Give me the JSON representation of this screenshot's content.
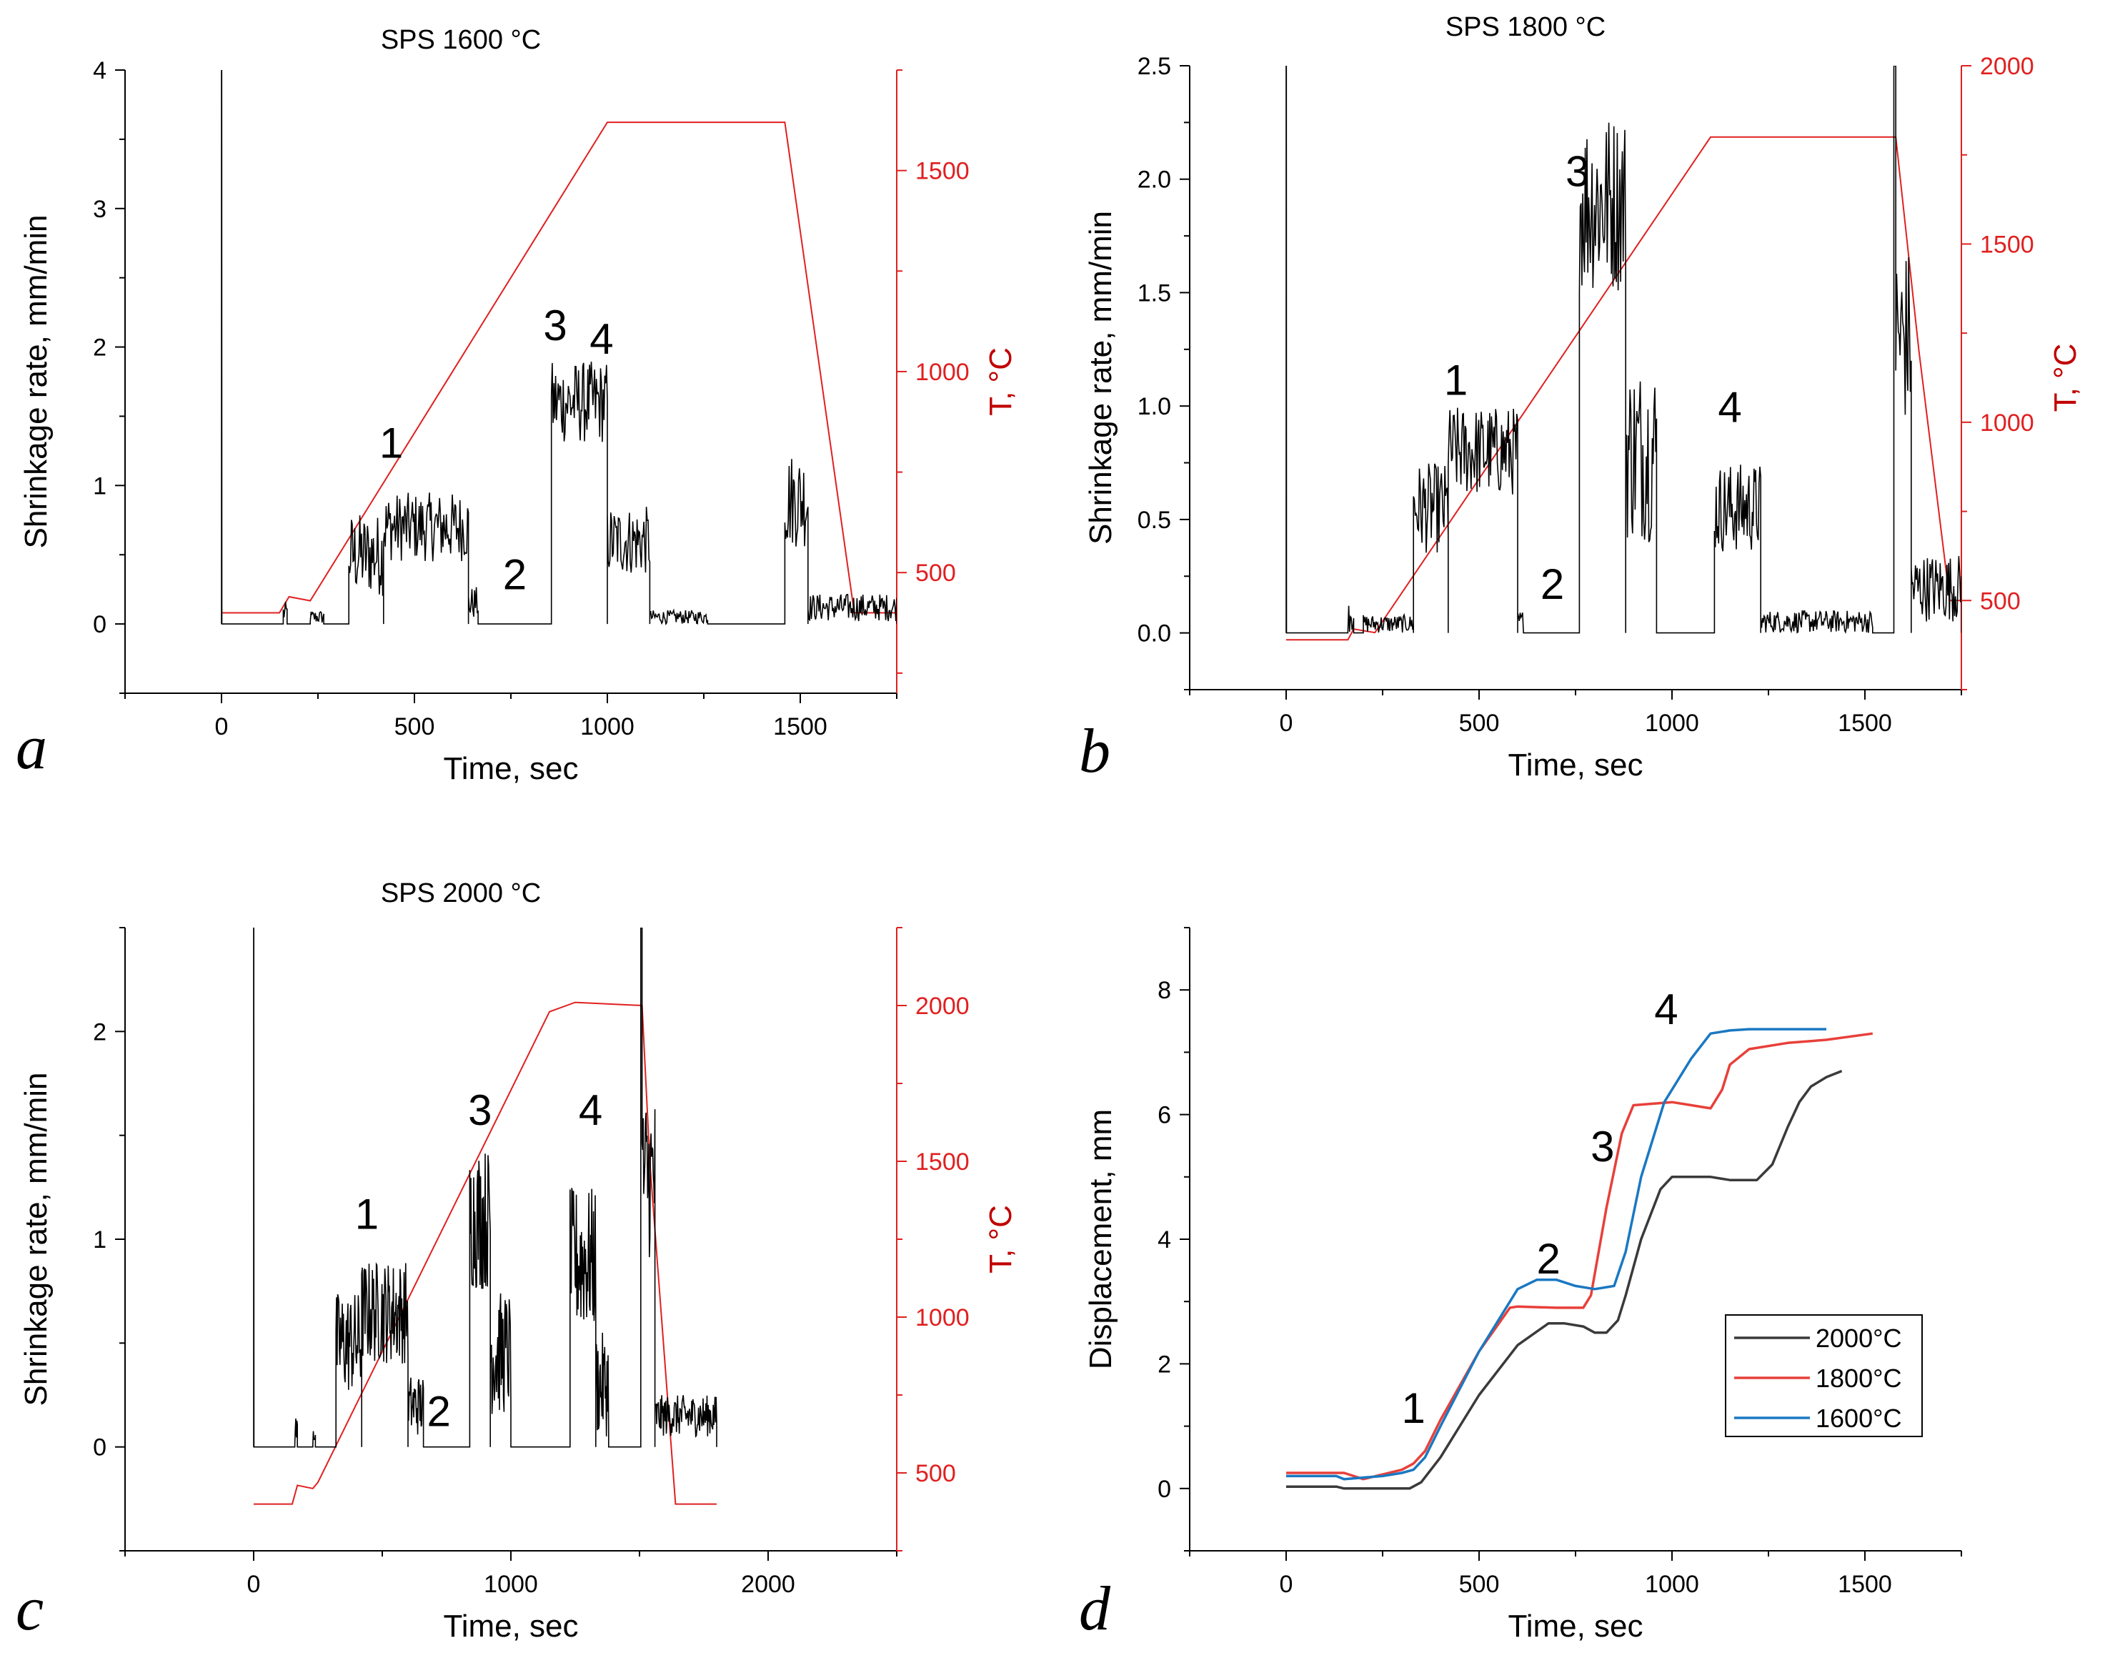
{
  "colors": {
    "rate": "#000000",
    "temp": "#e02020",
    "temp_axis_label": "#c00000",
    "line_2000": "#3a3a3a",
    "line_1800": "#e8403a",
    "line_1600": "#1a78c2"
  },
  "chart_data": [
    {
      "panel": "a",
      "type": "line",
      "title": "SPS 1600 °C",
      "xlabel": "Time, sec",
      "ylabel": "Shrinkage rate, mm/min",
      "y2label": "T, °C",
      "xlim": [
        -250,
        1750
      ],
      "ylim": [
        -0.5,
        4
      ],
      "y2lim": [
        200,
        1750
      ],
      "xticks": [
        0,
        500,
        1000,
        1500
      ],
      "xtick_labels": [
        "0",
        "500",
        "1000",
        "1500"
      ],
      "yticks": [
        0,
        1,
        2,
        3,
        4
      ],
      "ytick_labels": [
        "0",
        "1",
        "2",
        "3",
        "4"
      ],
      "y2ticks": [
        500,
        1000,
        1500
      ],
      "y2tick_labels": [
        "500",
        "1000",
        "1500"
      ],
      "rate_segments": [
        {
          "start": 0,
          "end": 1,
          "base": 0,
          "amp": 4.0,
          "noise": 0
        },
        {
          "start": 1,
          "end": 160,
          "base": 0,
          "amp": 0,
          "noise": 0
        },
        {
          "start": 160,
          "end": 170,
          "base": 0.08,
          "amp": 0,
          "noise": 0.08
        },
        {
          "start": 230,
          "end": 265,
          "base": 0.05,
          "amp": 0,
          "noise": 0.05
        },
        {
          "start": 330,
          "end": 420,
          "base": 0.5,
          "amp": 0,
          "noise": 0.3
        },
        {
          "start": 420,
          "end": 640,
          "base": 0.7,
          "amp": 0,
          "noise": 0.25
        },
        {
          "start": 640,
          "end": 665,
          "base": 0.15,
          "amp": 0,
          "noise": 0.12
        },
        {
          "start": 665,
          "end": 855,
          "base": 0,
          "amp": 0,
          "noise": 0
        },
        {
          "start": 855,
          "end": 1000,
          "base": 1.6,
          "amp": 0,
          "noise": 0.3
        },
        {
          "start": 1000,
          "end": 1110,
          "base": 0.6,
          "amp": 0,
          "noise": 0.25
        },
        {
          "start": 1110,
          "end": 1260,
          "base": 0.05,
          "amp": 0,
          "noise": 0.05
        },
        {
          "start": 1260,
          "end": 1460,
          "base": 0,
          "amp": 0,
          "noise": 0
        },
        {
          "start": 1460,
          "end": 1520,
          "base": 0.9,
          "amp": 0,
          "noise": 0.35
        },
        {
          "start": 1520,
          "end": 1750,
          "base": 0.12,
          "amp": 0,
          "noise": 0.1
        }
      ],
      "temp_x": [
        0,
        150,
        175,
        230,
        1000,
        1460,
        1640,
        1750
      ],
      "temp_y": [
        400,
        400,
        440,
        430,
        1620,
        1620,
        400,
        400
      ],
      "annotations": [
        {
          "text": "1",
          "x": 440,
          "y": 1.2
        },
        {
          "text": "2",
          "x": 760,
          "y": 0.25
        },
        {
          "text": "3",
          "x": 865,
          "y": 2.05
        },
        {
          "text": "4",
          "x": 985,
          "y": 1.95
        }
      ]
    },
    {
      "panel": "b",
      "type": "line",
      "title": "SPS 1800 °C",
      "xlabel": "Time, sec",
      "ylabel": "Shrinkage rate, mm/min",
      "y2label": "T, °C",
      "xlim": [
        -250,
        1750
      ],
      "ylim": [
        -0.25,
        2.5
      ],
      "y2lim": [
        250,
        2000
      ],
      "xticks": [
        0,
        500,
        1000,
        1500
      ],
      "xtick_labels": [
        "0",
        "500",
        "1000",
        "1500"
      ],
      "yticks": [
        0,
        0.5,
        1,
        1.5,
        2,
        2.5
      ],
      "ytick_labels": [
        "0.0",
        "0.5",
        "1.0",
        "1.5",
        "2.0",
        "2.5"
      ],
      "y2ticks": [
        500,
        1000,
        1500,
        2000
      ],
      "y2tick_labels": [
        "500",
        "1000",
        "1500",
        "2000"
      ],
      "rate_segments": [
        {
          "start": 0,
          "end": 1,
          "base": 0,
          "amp": 2.5,
          "noise": 0
        },
        {
          "start": 1,
          "end": 160,
          "base": 0,
          "amp": 0,
          "noise": 0
        },
        {
          "start": 160,
          "end": 175,
          "base": 0.1,
          "amp": 0,
          "noise": 0.1
        },
        {
          "start": 200,
          "end": 330,
          "base": 0.04,
          "amp": 0,
          "noise": 0.04
        },
        {
          "start": 330,
          "end": 420,
          "base": 0.55,
          "amp": 0,
          "noise": 0.2
        },
        {
          "start": 420,
          "end": 600,
          "base": 0.8,
          "amp": 0,
          "noise": 0.2
        },
        {
          "start": 600,
          "end": 615,
          "base": 0.05,
          "amp": 0,
          "noise": 0.05
        },
        {
          "start": 615,
          "end": 760,
          "base": 0,
          "amp": 0,
          "noise": 0
        },
        {
          "start": 760,
          "end": 880,
          "base": 1.9,
          "amp": 0,
          "noise": 0.4
        },
        {
          "start": 880,
          "end": 960,
          "base": 0.8,
          "amp": 0,
          "noise": 0.4
        },
        {
          "start": 960,
          "end": 1110,
          "base": 0,
          "amp": 0,
          "noise": 0
        },
        {
          "start": 1110,
          "end": 1230,
          "base": 0.55,
          "amp": 0,
          "noise": 0.2
        },
        {
          "start": 1230,
          "end": 1520,
          "base": 0.05,
          "amp": 0,
          "noise": 0.05
        },
        {
          "start": 1520,
          "end": 1575,
          "base": 0,
          "amp": 0,
          "noise": 0
        },
        {
          "start": 1575,
          "end": 1580,
          "base": 2.5,
          "amp": 0,
          "noise": 0
        },
        {
          "start": 1580,
          "end": 1620,
          "base": 1.3,
          "amp": 0,
          "noise": 0.4
        },
        {
          "start": 1620,
          "end": 1750,
          "base": 0.2,
          "amp": 0,
          "noise": 0.15
        }
      ],
      "temp_x": [
        0,
        160,
        175,
        230,
        1100,
        1580,
        1640,
        1720,
        1750
      ],
      "temp_y": [
        390,
        390,
        420,
        410,
        1800,
        1800,
        1200,
        500,
        500
      ],
      "annotations": [
        {
          "text": "1",
          "x": 440,
          "y": 1.05
        },
        {
          "text": "2",
          "x": 690,
          "y": 0.15
        },
        {
          "text": "3",
          "x": 755,
          "y": 1.97
        },
        {
          "text": "4",
          "x": 1150,
          "y": 0.93
        }
      ]
    },
    {
      "panel": "c",
      "type": "line",
      "title": "SPS 2000 °C",
      "xlabel": "Time, sec",
      "ylabel": "Shrinkage rate, mm/min",
      "y2label": "T, °C",
      "xlim": [
        -500,
        2500
      ],
      "ylim": [
        -0.5,
        2.5
      ],
      "y2lim": [
        250,
        2250
      ],
      "xticks": [
        0,
        1000,
        2000
      ],
      "xtick_labels": [
        "0",
        "1000",
        "2000"
      ],
      "yticks": [
        0,
        1,
        2
      ],
      "ytick_labels": [
        "0",
        "1",
        "2"
      ],
      "y2ticks": [
        500,
        1000,
        1500,
        2000
      ],
      "y2tick_labels": [
        "500",
        "1000",
        "1500",
        "2000"
      ],
      "rate_segments": [
        {
          "start": 0,
          "end": 1,
          "base": 0,
          "amp": 2.5,
          "noise": 0
        },
        {
          "start": 1,
          "end": 160,
          "base": 0,
          "amp": 0,
          "noise": 0
        },
        {
          "start": 160,
          "end": 170,
          "base": 0.08,
          "amp": 0,
          "noise": 0.08
        },
        {
          "start": 230,
          "end": 240,
          "base": 0.08,
          "amp": 0,
          "noise": 0.08
        },
        {
          "start": 320,
          "end": 420,
          "base": 0.5,
          "amp": 0,
          "noise": 0.25
        },
        {
          "start": 420,
          "end": 600,
          "base": 0.65,
          "amp": 0,
          "noise": 0.25
        },
        {
          "start": 600,
          "end": 660,
          "base": 0.2,
          "amp": 0,
          "noise": 0.15
        },
        {
          "start": 660,
          "end": 840,
          "base": 0,
          "amp": 0,
          "noise": 0
        },
        {
          "start": 840,
          "end": 920,
          "base": 1.1,
          "amp": 0,
          "noise": 0.35
        },
        {
          "start": 920,
          "end": 1000,
          "base": 0.45,
          "amp": 0,
          "noise": 0.3
        },
        {
          "start": 1000,
          "end": 1230,
          "base": 0,
          "amp": 0,
          "noise": 0
        },
        {
          "start": 1230,
          "end": 1330,
          "base": 0.9,
          "amp": 0,
          "noise": 0.35
        },
        {
          "start": 1330,
          "end": 1380,
          "base": 0.3,
          "amp": 0,
          "noise": 0.25
        },
        {
          "start": 1380,
          "end": 1505,
          "base": 0,
          "amp": 0,
          "noise": 0
        },
        {
          "start": 1505,
          "end": 1510,
          "base": 2.5,
          "amp": 0,
          "noise": 0
        },
        {
          "start": 1510,
          "end": 1560,
          "base": 1.3,
          "amp": 0,
          "noise": 0.4
        },
        {
          "start": 1560,
          "end": 1800,
          "base": 0.15,
          "amp": 0,
          "noise": 0.1
        }
      ],
      "temp_x": [
        0,
        150,
        170,
        230,
        250,
        1150,
        1250,
        1510,
        1540,
        1640,
        1800
      ],
      "temp_y": [
        400,
        400,
        460,
        450,
        470,
        1980,
        2010,
        2000,
        1500,
        400,
        400
      ],
      "annotations": [
        {
          "text": "1",
          "x": 440,
          "y": 1.05
        },
        {
          "text": "2",
          "x": 720,
          "y": 0.1
        },
        {
          "text": "3",
          "x": 880,
          "y": 1.55
        },
        {
          "text": "4",
          "x": 1310,
          "y": 1.55
        }
      ]
    },
    {
      "panel": "d",
      "type": "line",
      "xlabel": "Time, sec",
      "ylabel": "Displacement, mm",
      "xlim": [
        -250,
        1750
      ],
      "ylim": [
        -1,
        9
      ],
      "xticks": [
        0,
        500,
        1000,
        1500
      ],
      "xtick_labels": [
        "0",
        "500",
        "1000",
        "1500"
      ],
      "yticks": [
        0,
        2,
        4,
        6,
        8
      ],
      "ytick_labels": [
        "0",
        "2",
        "4",
        "6",
        "8"
      ],
      "legend_position": "bottom-right",
      "series": [
        {
          "name": "2000°C",
          "x": [
            0,
            130,
            150,
            200,
            320,
            350,
            400,
            500,
            600,
            680,
            720,
            770,
            800,
            830,
            860,
            880,
            920,
            970,
            1000,
            1100,
            1150,
            1220,
            1260,
            1300,
            1330,
            1360,
            1400,
            1440
          ],
          "y": [
            0.03,
            0.03,
            0,
            0,
            0,
            0.1,
            0.5,
            1.5,
            2.3,
            2.65,
            2.65,
            2.6,
            2.5,
            2.5,
            2.7,
            3.1,
            4.0,
            4.8,
            5.0,
            5.0,
            4.95,
            4.95,
            5.2,
            5.8,
            6.2,
            6.45,
            6.6,
            6.7
          ]
        },
        {
          "name": "1800°C",
          "x": [
            0,
            150,
            200,
            300,
            330,
            360,
            400,
            500,
            580,
            600,
            700,
            770,
            790,
            830,
            870,
            900,
            1000,
            1050,
            1100,
            1130,
            1150,
            1200,
            1300,
            1400,
            1520
          ],
          "y": [
            0.25,
            0.25,
            0.15,
            0.3,
            0.4,
            0.6,
            1.1,
            2.2,
            2.9,
            2.92,
            2.9,
            2.9,
            3.1,
            4.5,
            5.7,
            6.15,
            6.2,
            6.15,
            6.1,
            6.4,
            6.8,
            7.05,
            7.15,
            7.2,
            7.3
          ]
        },
        {
          "name": "1600°C",
          "x": [
            0,
            130,
            150,
            250,
            300,
            330,
            360,
            400,
            500,
            600,
            650,
            700,
            750,
            800,
            850,
            880,
            920,
            980,
            1050,
            1100,
            1150,
            1200,
            1250,
            1300,
            1400
          ],
          "y": [
            0.2,
            0.2,
            0.15,
            0.2,
            0.25,
            0.3,
            0.5,
            1.0,
            2.2,
            3.2,
            3.35,
            3.35,
            3.25,
            3.2,
            3.25,
            3.8,
            5.0,
            6.2,
            6.9,
            7.3,
            7.35,
            7.37,
            7.37,
            7.37,
            7.37
          ]
        }
      ],
      "annotations": [
        {
          "text": "1",
          "x": 330,
          "y": 1.05
        },
        {
          "text": "2",
          "x": 680,
          "y": 3.45
        },
        {
          "text": "3",
          "x": 820,
          "y": 5.25
        },
        {
          "text": "4",
          "x": 985,
          "y": 7.45
        }
      ]
    }
  ],
  "panel_letters": [
    "a",
    "b",
    "c",
    "d"
  ]
}
